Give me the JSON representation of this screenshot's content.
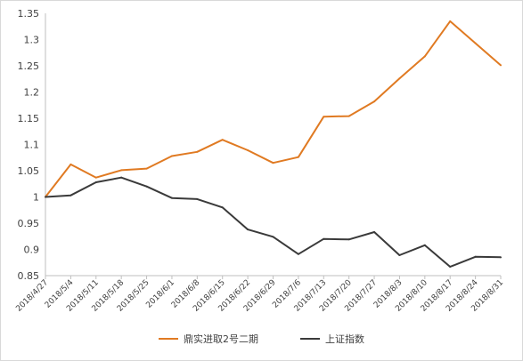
{
  "chart_data": {
    "type": "line",
    "categories": [
      "2018/4/27",
      "2018/5/4",
      "2018/5/11",
      "2018/5/18",
      "2018/5/25",
      "2018/6/1",
      "2018/6/8",
      "2018/6/15",
      "2018/6/22",
      "2018/6/29",
      "2018/7/6",
      "2018/7/13",
      "2018/7/20",
      "2018/7/27",
      "2018/8/3",
      "2018/8/10",
      "2018/8/17",
      "2018/8/24",
      "2018/8/31"
    ],
    "series": [
      {
        "name": "鼎实进取2号二期",
        "color": "#e07a22",
        "values": [
          1.0,
          1.062,
          1.037,
          1.051,
          1.054,
          1.078,
          1.086,
          1.109,
          1.089,
          1.065,
          1.076,
          1.153,
          1.154,
          1.182,
          1.226,
          1.268,
          1.335,
          1.293,
          1.251
        ]
      },
      {
        "name": "上证指数",
        "color": "#3a3a3a",
        "values": [
          1.0,
          1.003,
          1.028,
          1.037,
          1.02,
          0.998,
          0.996,
          0.98,
          0.938,
          0.924,
          0.891,
          0.92,
          0.919,
          0.933,
          0.889,
          0.908,
          0.867,
          0.886,
          0.885
        ]
      }
    ],
    "ylim": [
      0.85,
      1.35
    ],
    "yticks": [
      "0.85",
      "0.9",
      "0.95",
      "1",
      "1.05",
      "1.1",
      "1.15",
      "1.2",
      "1.25",
      "1.3",
      "1.35"
    ],
    "title": "",
    "xlabel": "",
    "ylabel": "",
    "grid": false,
    "legend_position": "bottom"
  }
}
